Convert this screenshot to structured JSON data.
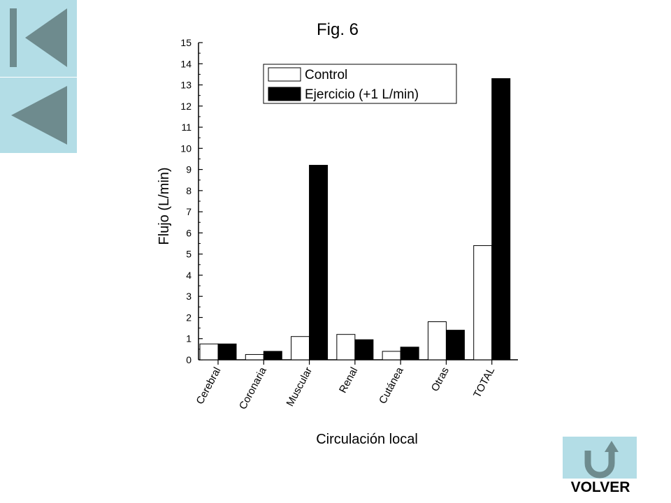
{
  "nav": {
    "first_icon": "skip-to-first-icon",
    "prev_icon": "previous-triangle-icon",
    "back_icon": "u-turn-return-arrow-icon",
    "back_label": "VOLVER",
    "button_color": "#b3dde6",
    "icon_color": "#6e8b8e"
  },
  "chart_data": {
    "type": "bar",
    "title": "Fig. 6",
    "xlabel": "Circulación local",
    "ylabel": "Flujo (L/min)",
    "ylim": [
      0,
      15
    ],
    "yticks": [
      0,
      1,
      2,
      3,
      4,
      5,
      6,
      7,
      8,
      9,
      10,
      11,
      12,
      13,
      14,
      15
    ],
    "categories": [
      "Cerebral",
      "Coronaria",
      "Muscular",
      "Renal",
      "Cutánea",
      "Otras",
      "TOTAL"
    ],
    "series": [
      {
        "name": "Control",
        "values": [
          0.75,
          0.25,
          1.1,
          1.2,
          0.4,
          1.8,
          5.4
        ],
        "color": "#ffffff"
      },
      {
        "name": "Ejercicio (+1 L/min)",
        "values": [
          0.75,
          0.4,
          9.2,
          0.95,
          0.6,
          1.4,
          13.3
        ],
        "color": "#000000"
      }
    ],
    "legend_position": "top-right",
    "grid": false
  }
}
